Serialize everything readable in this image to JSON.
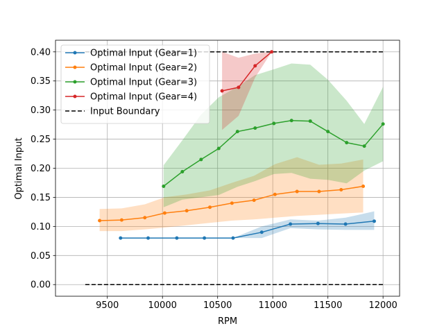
{
  "chart_data": {
    "type": "line",
    "title": "",
    "xlabel": "RPM",
    "ylabel": "Optimal Input",
    "xlim": [
      9030,
      12150
    ],
    "ylim": [
      -0.02,
      0.42
    ],
    "xticks": [
      9500,
      10000,
      10500,
      11000,
      11500,
      12000
    ],
    "yticks": [
      0.0,
      0.05,
      0.1,
      0.15,
      0.2,
      0.25,
      0.3,
      0.35,
      0.4
    ],
    "xtick_labels": [
      "9500",
      "10000",
      "10500",
      "11000",
      "11500",
      "12000"
    ],
    "ytick_labels": [
      "0.00",
      "0.05",
      "0.10",
      "0.15",
      "0.20",
      "0.25",
      "0.30",
      "0.35",
      "0.40"
    ],
    "grid": true,
    "legend_position": "upper-left",
    "series": [
      {
        "name": "Optimal Input (Gear=1)",
        "color": "#1f77b4",
        "x": [
          9620,
          9870,
          10130,
          10380,
          10640,
          10900,
          11160,
          11410,
          11660,
          11920
        ],
        "y": [
          0.08,
          0.08,
          0.08,
          0.08,
          0.08,
          0.09,
          0.104,
          0.105,
          0.104,
          0.109
        ],
        "band_upper": [
          0.08,
          0.08,
          0.08,
          0.08,
          0.08,
          0.1,
          0.112,
          0.11,
          0.115,
          0.126
        ],
        "band_lower": [
          0.08,
          0.08,
          0.08,
          0.08,
          0.08,
          0.08,
          0.097,
          0.095,
          0.094,
          0.094
        ]
      },
      {
        "name": "Optimal Input (Gear=2)",
        "color": "#ff7f0e",
        "x": [
          9430,
          9630,
          9840,
          10020,
          10220,
          10430,
          10630,
          10830,
          11020,
          11220,
          11420,
          11620,
          11820
        ],
        "y": [
          0.11,
          0.111,
          0.115,
          0.123,
          0.127,
          0.133,
          0.14,
          0.145,
          0.155,
          0.16,
          0.16,
          0.163,
          0.169
        ],
        "band_upper": [
          0.13,
          0.131,
          0.138,
          0.15,
          0.155,
          0.162,
          0.175,
          0.187,
          0.207,
          0.219,
          0.206,
          0.208,
          0.215
        ],
        "band_lower": [
          0.092,
          0.092,
          0.095,
          0.098,
          0.102,
          0.106,
          0.11,
          0.112,
          0.115,
          0.118,
          0.12,
          0.122,
          0.124
        ]
      },
      {
        "name": "Optimal Input (Gear=3)",
        "color": "#2ca02c",
        "x": [
          10010,
          10180,
          10350,
          10510,
          10680,
          10840,
          11010,
          11170,
          11340,
          11500,
          11670,
          11830,
          12000
        ],
        "y": [
          0.169,
          0.194,
          0.215,
          0.234,
          0.263,
          0.269,
          0.277,
          0.282,
          0.281,
          0.263,
          0.244,
          0.238,
          0.276
        ],
        "band_upper": [
          0.205,
          0.248,
          0.292,
          0.322,
          0.34,
          0.36,
          0.37,
          0.38,
          0.378,
          0.352,
          0.316,
          0.276,
          0.34
        ],
        "band_lower": [
          0.133,
          0.146,
          0.15,
          0.154,
          0.168,
          0.178,
          0.19,
          0.192,
          0.182,
          0.18,
          0.174,
          0.196,
          0.212
        ]
      },
      {
        "name": "Optimal Input (Gear=4)",
        "color": "#d62728",
        "x": [
          10540,
          10690,
          10840,
          10990
        ],
        "y": [
          0.333,
          0.339,
          0.376,
          0.4
        ],
        "band_upper": [
          0.4,
          0.39,
          0.397,
          0.4
        ],
        "band_lower": [
          0.266,
          0.29,
          0.356,
          0.4
        ]
      }
    ],
    "boundary": {
      "name": "Input Boundary",
      "color": "#000000",
      "x_range": [
        9300,
        12000
      ],
      "y_values": [
        0.0,
        0.4
      ]
    }
  }
}
